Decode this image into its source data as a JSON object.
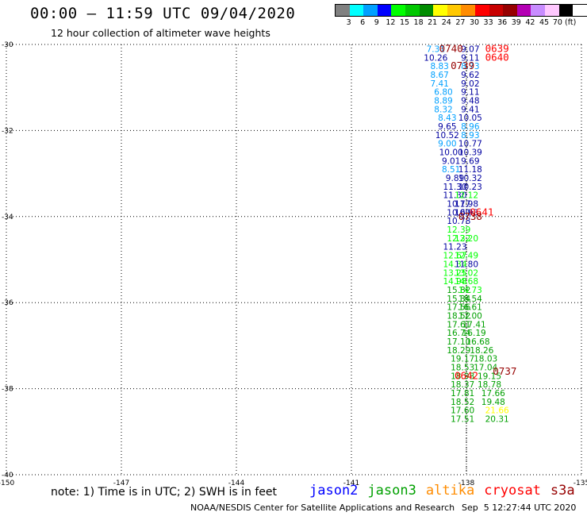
{
  "header": {
    "title": "00:00 – 11:59 UTC 09/04/2020",
    "subtitle": "12 hour collection of altimeter wave heights"
  },
  "legend": {
    "colors": [
      "#808080",
      "#00ffff",
      "#00a0ff",
      "#0000ff",
      "#00ff00",
      "#00c800",
      "#008c00",
      "#ffff00",
      "#ffc800",
      "#ff8c00",
      "#ff0000",
      "#c80000",
      "#960000",
      "#b400b4",
      "#c88cff",
      "#ffc8ff",
      "#000000"
    ],
    "ticks": [
      "3",
      "6",
      "9",
      "12",
      "15",
      "18",
      "21",
      "24",
      "27",
      "30",
      "33",
      "36",
      "39",
      "42",
      "45",
      "70 (ft)"
    ]
  },
  "map": {
    "lon_range": [
      -150,
      -135
    ],
    "lat_range": [
      -40,
      -30
    ],
    "lat_ticks": [
      "-30",
      "-32",
      "-34",
      "-36",
      "-38",
      "-40"
    ],
    "lon_ticks": [
      "-150",
      "-147",
      "-144",
      "-141",
      "-138",
      "-135"
    ]
  },
  "chart_data": {
    "type": "scatter",
    "series": [
      {
        "name": "track-0739-0740",
        "color_scale": "swh",
        "points": [
          {
            "lat": -30.1,
            "lon": -138.8,
            "v": "7.31",
            "c": "#00a0ff"
          },
          {
            "lat": -30.3,
            "lon": -138.8,
            "v": "10.26",
            "c": "#0000a0"
          },
          {
            "lat": -30.5,
            "lon": -138.7,
            "v": "8.83",
            "c": "#00a0ff"
          },
          {
            "lat": -30.7,
            "lon": -138.7,
            "v": "8.67",
            "c": "#00a0ff"
          },
          {
            "lat": -30.9,
            "lon": -138.7,
            "v": "7.41",
            "c": "#00a0ff"
          },
          {
            "lat": -31.1,
            "lon": -138.6,
            "v": "6.80",
            "c": "#00a0ff"
          },
          {
            "lat": -31.3,
            "lon": -138.6,
            "v": "8.89",
            "c": "#00a0ff"
          },
          {
            "lat": -31.5,
            "lon": -138.6,
            "v": "8.32",
            "c": "#00a0ff"
          },
          {
            "lat": -31.7,
            "lon": -138.5,
            "v": "8.43",
            "c": "#00a0ff"
          },
          {
            "lat": -31.9,
            "lon": -138.5,
            "v": "9.65",
            "c": "#0000a0"
          },
          {
            "lat": -32.1,
            "lon": -138.5,
            "v": "10.52",
            "c": "#0000a0"
          },
          {
            "lat": -32.3,
            "lon": -138.5,
            "v": "9.00",
            "c": "#00a0ff"
          },
          {
            "lat": -32.5,
            "lon": -138.4,
            "v": "10.00",
            "c": "#0000a0"
          },
          {
            "lat": -32.7,
            "lon": -138.4,
            "v": "9.01",
            "c": "#0000a0"
          },
          {
            "lat": -32.9,
            "lon": -138.4,
            "v": "8.51",
            "c": "#00a0ff"
          },
          {
            "lat": -33.1,
            "lon": -138.3,
            "v": "9.89",
            "c": "#0000a0"
          },
          {
            "lat": -33.3,
            "lon": -138.3,
            "v": "11.30",
            "c": "#0000a0"
          },
          {
            "lat": -33.5,
            "lon": -138.3,
            "v": "11.30",
            "c": "#0000a0"
          },
          {
            "lat": -33.7,
            "lon": -138.2,
            "v": "10.77",
            "c": "#0000a0"
          },
          {
            "lat": -33.9,
            "lon": -138.2,
            "v": "10.69",
            "c": "#0000a0"
          },
          {
            "lat": -34.1,
            "lon": -138.2,
            "v": "10.78",
            "c": "#0000a0"
          },
          {
            "lat": -34.3,
            "lon": -138.2,
            "v": "12.39",
            "c": "#00ff00"
          },
          {
            "lat": -34.5,
            "lon": -138.2,
            "v": "12.32",
            "c": "#00ff00"
          },
          {
            "lat": -34.7,
            "lon": -138.3,
            "v": "11.23",
            "c": "#0000a0"
          },
          {
            "lat": -34.9,
            "lon": -138.3,
            "v": "12.67",
            "c": "#00ff00"
          },
          {
            "lat": -35.1,
            "lon": -138.3,
            "v": "14.34",
            "c": "#00ff00"
          },
          {
            "lat": -35.3,
            "lon": -138.3,
            "v": "13.25",
            "c": "#00ff00"
          },
          {
            "lat": -35.5,
            "lon": -138.3,
            "v": "14.98",
            "c": "#00ff00"
          },
          {
            "lat": -35.7,
            "lon": -138.2,
            "v": "15.82",
            "c": "#00a000"
          },
          {
            "lat": -35.9,
            "lon": -138.2,
            "v": "15.34",
            "c": "#00a000"
          },
          {
            "lat": -36.1,
            "lon": -138.2,
            "v": "17.56",
            "c": "#00a000"
          },
          {
            "lat": -36.3,
            "lon": -138.2,
            "v": "18.52",
            "c": "#00a000"
          },
          {
            "lat": -36.5,
            "lon": -138.2,
            "v": "17.61",
            "c": "#00a000"
          },
          {
            "lat": -36.7,
            "lon": -138.2,
            "v": "16.74",
            "c": "#00a000"
          },
          {
            "lat": -36.9,
            "lon": -138.2,
            "v": "17.10",
            "c": "#00a000"
          },
          {
            "lat": -37.1,
            "lon": -138.2,
            "v": "18.29",
            "c": "#00a000"
          },
          {
            "lat": -37.3,
            "lon": -138.1,
            "v": "19.17",
            "c": "#00a000"
          },
          {
            "lat": -37.5,
            "lon": -138.1,
            "v": "18.53",
            "c": "#00a000"
          },
          {
            "lat": -37.7,
            "lon": -138.1,
            "v": "18.98",
            "c": "#00a000"
          },
          {
            "lat": -37.9,
            "lon": -138.1,
            "v": "18.37",
            "c": "#00a000"
          },
          {
            "lat": -38.1,
            "lon": -138.1,
            "v": "17.81",
            "c": "#00a000"
          },
          {
            "lat": -38.3,
            "lon": -138.1,
            "v": "18.52",
            "c": "#00a000"
          },
          {
            "lat": -38.5,
            "lon": -138.1,
            "v": "17.60",
            "c": "#00a000"
          },
          {
            "lat": -38.7,
            "lon": -138.1,
            "v": "17.51",
            "c": "#00a000"
          }
        ]
      },
      {
        "name": "track-0639-0642",
        "color_scale": "swh",
        "points": [
          {
            "lat": -30.1,
            "lon": -137.9,
            "v": "9.07",
            "c": "#0000a0"
          },
          {
            "lat": -30.3,
            "lon": -137.9,
            "v": "9.11",
            "c": "#0000a0"
          },
          {
            "lat": -30.5,
            "lon": -137.9,
            "v": "8.73",
            "c": "#00a0ff"
          },
          {
            "lat": -30.7,
            "lon": -137.9,
            "v": "9.62",
            "c": "#0000a0"
          },
          {
            "lat": -30.9,
            "lon": -137.9,
            "v": "9.02",
            "c": "#0000a0"
          },
          {
            "lat": -31.1,
            "lon": -137.9,
            "v": "9.11",
            "c": "#0000a0"
          },
          {
            "lat": -31.3,
            "lon": -137.9,
            "v": "9.48",
            "c": "#0000a0"
          },
          {
            "lat": -31.5,
            "lon": -137.9,
            "v": "9.41",
            "c": "#0000a0"
          },
          {
            "lat": -31.7,
            "lon": -137.9,
            "v": "10.05",
            "c": "#0000a0"
          },
          {
            "lat": -31.9,
            "lon": -137.9,
            "v": "8.96",
            "c": "#00a0ff"
          },
          {
            "lat": -32.1,
            "lon": -137.9,
            "v": "8.93",
            "c": "#00a0ff"
          },
          {
            "lat": -32.3,
            "lon": -137.9,
            "v": "10.77",
            "c": "#0000a0"
          },
          {
            "lat": -32.5,
            "lon": -137.9,
            "v": "10.39",
            "c": "#0000a0"
          },
          {
            "lat": -32.7,
            "lon": -137.9,
            "v": "9.69",
            "c": "#0000a0"
          },
          {
            "lat": -32.9,
            "lon": -137.9,
            "v": "11.18",
            "c": "#0000a0"
          },
          {
            "lat": -33.1,
            "lon": -137.9,
            "v": "10.32",
            "c": "#0000a0"
          },
          {
            "lat": -33.3,
            "lon": -137.9,
            "v": "10.23",
            "c": "#0000a0"
          },
          {
            "lat": -33.5,
            "lon": -138.0,
            "v": "12.12",
            "c": "#00ff00"
          },
          {
            "lat": -33.7,
            "lon": -138.0,
            "v": "11.98",
            "c": "#0000a0"
          },
          {
            "lat": -33.9,
            "lon": -138.0,
            "v": "10.93",
            "c": "#0000a0"
          },
          {
            "lat": -34.5,
            "lon": -138.0,
            "v": "12.20",
            "c": "#00ff00"
          },
          {
            "lat": -34.9,
            "lon": -138.0,
            "v": "12.49",
            "c": "#00ff00"
          },
          {
            "lat": -35.1,
            "lon": -138.0,
            "v": "11.80",
            "c": "#0000a0"
          },
          {
            "lat": -35.3,
            "lon": -138.0,
            "v": "13.02",
            "c": "#00ff00"
          },
          {
            "lat": -35.5,
            "lon": -138.0,
            "v": "14.68",
            "c": "#00ff00"
          },
          {
            "lat": -35.7,
            "lon": -137.9,
            "v": "14.73",
            "c": "#00ff00"
          },
          {
            "lat": -35.9,
            "lon": -137.9,
            "v": "18.54",
            "c": "#00a000"
          },
          {
            "lat": -36.1,
            "lon": -137.9,
            "v": "16.61",
            "c": "#00a000"
          },
          {
            "lat": -36.3,
            "lon": -137.9,
            "v": "17.00",
            "c": "#00a000"
          },
          {
            "lat": -36.5,
            "lon": -137.8,
            "v": "17.41",
            "c": "#00a000"
          },
          {
            "lat": -36.7,
            "lon": -137.8,
            "v": "16.19",
            "c": "#00a000"
          },
          {
            "lat": -36.9,
            "lon": -137.7,
            "v": "16.68",
            "c": "#00a000"
          },
          {
            "lat": -37.1,
            "lon": -137.6,
            "v": "18.26",
            "c": "#00a000"
          },
          {
            "lat": -37.3,
            "lon": -137.5,
            "v": "18.03",
            "c": "#00a000"
          },
          {
            "lat": -37.5,
            "lon": -137.5,
            "v": "17.04",
            "c": "#00a000"
          },
          {
            "lat": -37.7,
            "lon": -137.4,
            "v": "19.15",
            "c": "#00a000"
          },
          {
            "lat": -37.9,
            "lon": -137.4,
            "v": "18.78",
            "c": "#00a000"
          },
          {
            "lat": -38.1,
            "lon": -137.3,
            "v": "17.66",
            "c": "#00a000"
          },
          {
            "lat": -38.3,
            "lon": -137.3,
            "v": "19.48",
            "c": "#00a000"
          },
          {
            "lat": -38.5,
            "lon": -137.2,
            "v": "21.66",
            "c": "#ffff00"
          },
          {
            "lat": -38.7,
            "lon": -137.2,
            "v": "20.31",
            "c": "#00a000"
          }
        ]
      }
    ],
    "time_labels": [
      {
        "lat": -30.1,
        "lon": -138.4,
        "t": "0740",
        "c": "#960000"
      },
      {
        "lat": -30.5,
        "lon": -138.1,
        "t": "0739",
        "c": "#960000"
      },
      {
        "lat": -30.1,
        "lon": -137.2,
        "t": "0639",
        "c": "#ff0000"
      },
      {
        "lat": -30.3,
        "lon": -137.2,
        "t": "0640",
        "c": "#ff0000"
      },
      {
        "lat": -33.9,
        "lon": -137.6,
        "t": "0641",
        "c": "#ff0000"
      },
      {
        "lat": -34.0,
        "lon": -137.9,
        "t": "0738",
        "c": "#960000"
      },
      {
        "lat": -37.6,
        "lon": -137.0,
        "t": "0737",
        "c": "#960000"
      },
      {
        "lat": -37.7,
        "lon": -138.0,
        "t": "0642",
        "c": "#ff0000"
      }
    ],
    "track_line_lon": -138.0
  },
  "notes": {
    "note": "note: 1) Time is in UTC; 2) SWH is in feet",
    "satellites": [
      {
        "name": "jason2",
        "color": "#0000ff"
      },
      {
        "name": "jason3",
        "color": "#00a000"
      },
      {
        "name": "altika",
        "color": "#ff8c00"
      },
      {
        "name": "cryosat",
        "color": "#ff0000"
      },
      {
        "name": "s3a",
        "color": "#960000"
      }
    ],
    "footer": "NOAA/NESDIS Center for Satellite Applications and Research",
    "footer_time": "Sep  5 12:27:44 UTC 2020"
  }
}
